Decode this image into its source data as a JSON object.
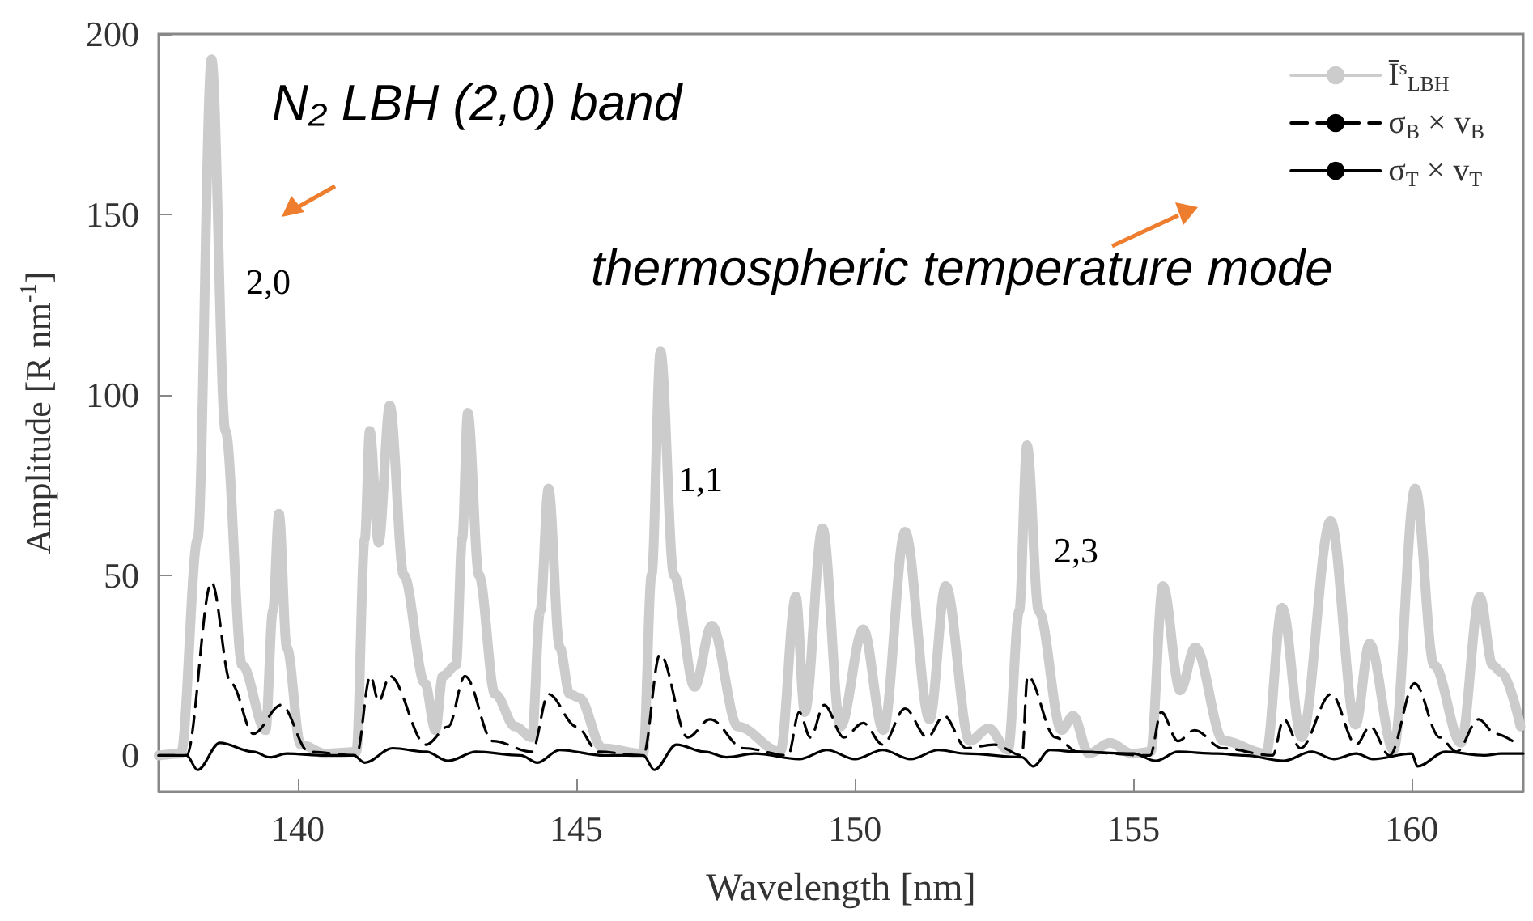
{
  "chart_data": {
    "type": "line",
    "xlabel": "Wavelength [nm]",
    "ylabel": "Amplitude [R nm$^{-1}$]",
    "xlim": [
      137.5,
      162
    ],
    "xticks": [
      140,
      145,
      150,
      155,
      160
    ],
    "ylim": [
      -10,
      200
    ],
    "yticks": [
      0,
      50,
      100,
      150,
      200
    ],
    "grid": false,
    "legend": "top right",
    "marker": "none",
    "annotations": [
      "N₂ LBH (2,0) band",
      "thermospheric temperature mode",
      "2,0",
      "1,1",
      "2,3"
    ],
    "series": [
      {
        "name": "Ī$^{s}$$_{LBH}$",
        "color": "#cccccc",
        "line_style": "solid",
        "x": [
          137.5,
          137.9,
          138.2,
          138.45,
          138.7,
          139.0,
          139.42,
          139.55,
          139.66,
          139.8,
          140.05,
          140.5,
          141.05,
          141.2,
          141.29,
          141.45,
          141.65,
          141.9,
          142.28,
          142.47,
          142.6,
          142.84,
          142.95,
          143.05,
          143.25,
          143.54,
          143.9,
          144.2,
          144.35,
          144.5,
          144.7,
          144.88,
          145.05,
          145.47,
          146.2,
          146.35,
          146.51,
          146.75,
          147.12,
          147.43,
          147.9,
          148.66,
          148.94,
          149.1,
          149.42,
          149.74,
          150.15,
          150.51,
          150.9,
          151.34,
          151.63,
          152.06,
          152.4,
          152.75,
          152.95,
          153.09,
          153.3,
          153.71,
          153.92,
          154.2,
          154.58,
          154.97,
          155.31,
          155.53,
          155.84,
          156.11,
          156.62,
          157.38,
          157.67,
          158.02,
          158.54,
          158.99,
          159.24,
          159.67,
          160.06,
          160.4,
          160.88,
          161.22,
          161.45,
          161.61,
          161.95
        ],
        "values": [
          0,
          0.5,
          60,
          193,
          90,
          25,
          7,
          40,
          67,
          30,
          3,
          0.5,
          1,
          60,
          90,
          59,
          97,
          50,
          20,
          7,
          22,
          25,
          60,
          95,
          50,
          17,
          8,
          5,
          40,
          74,
          30,
          17,
          16,
          2,
          0.5,
          50,
          112,
          50,
          19,
          36,
          8,
          1,
          44,
          12,
          63,
          8,
          35,
          7,
          62,
          10,
          47,
          4,
          7.5,
          1.5,
          40,
          86,
          40,
          7,
          11,
          0.5,
          3.5,
          0.5,
          1,
          47,
          18,
          30,
          4,
          0.5,
          41,
          5,
          65,
          8.5,
          31,
          1.5,
          74,
          25,
          3.5,
          44,
          25,
          23,
          8
        ]
      },
      {
        "name": "σ$_{B}$ × v$_{B}$",
        "color": "#000000",
        "line_style": "dashed",
        "x": [
          137.5,
          138.0,
          138.45,
          138.8,
          139.2,
          139.7,
          140.2,
          141.05,
          141.3,
          141.45,
          141.65,
          142.3,
          142.7,
          143.0,
          143.5,
          144.2,
          144.5,
          145.0,
          145.4,
          146.2,
          146.5,
          147.0,
          147.4,
          148.0,
          148.8,
          149.0,
          149.2,
          149.45,
          149.8,
          150.15,
          150.5,
          150.9,
          151.3,
          151.6,
          152.0,
          152.5,
          153.0,
          153.1,
          153.6,
          154.0,
          155.3,
          155.5,
          155.8,
          156.1,
          156.6,
          157.5,
          157.7,
          158.0,
          158.55,
          159.0,
          159.25,
          159.6,
          160.05,
          160.5,
          160.8,
          161.2,
          161.5,
          161.9
        ],
        "values": [
          0,
          0,
          48,
          20,
          6,
          14,
          1,
          0,
          22,
          15,
          22,
          3,
          8,
          22,
          4,
          1,
          17,
          8,
          1,
          0,
          28,
          5,
          10,
          2,
          0,
          12,
          5,
          14,
          5,
          9,
          3,
          13,
          5,
          11,
          2,
          3,
          0,
          22,
          5,
          1,
          0,
          12,
          4,
          7,
          2,
          0,
          10,
          2,
          17,
          3,
          8,
          0,
          20,
          5,
          1,
          10,
          6,
          3
        ]
      },
      {
        "name": "σ$_{T}$ × v$_{T}$",
        "color": "#000000",
        "line_style": "solid",
        "x": [
          137.5,
          138.0,
          138.2,
          138.6,
          139.2,
          139.5,
          139.8,
          140.5,
          141.0,
          141.2,
          141.7,
          142.3,
          142.7,
          143.2,
          144.0,
          144.3,
          144.7,
          145.5,
          146.2,
          146.4,
          146.8,
          147.3,
          147.7,
          148.2,
          149.0,
          149.5,
          150.0,
          150.5,
          151.0,
          151.5,
          152.0,
          153.0,
          153.2,
          153.5,
          154.0,
          155.0,
          155.4,
          155.8,
          156.5,
          157.0,
          157.7,
          158.2,
          158.6,
          159.0,
          159.3,
          160.0,
          160.1,
          160.6,
          161.3,
          161.6,
          162.0
        ],
        "values": [
          0,
          0,
          -4,
          3.5,
          1,
          -0.5,
          0.5,
          0,
          0,
          -2,
          2,
          1,
          -1.5,
          1,
          0,
          -2,
          1.5,
          0,
          0,
          -4,
          3,
          1,
          -0.5,
          0.5,
          -1,
          1.5,
          -1,
          1.5,
          -1,
          1.5,
          0.5,
          -0.5,
          -3,
          1.5,
          1,
          0.5,
          -1.5,
          1,
          0.5,
          0,
          -1.5,
          1,
          -1,
          0.5,
          -1,
          0.5,
          -3,
          1,
          0,
          0.5,
          0.5
        ]
      }
    ]
  }
}
